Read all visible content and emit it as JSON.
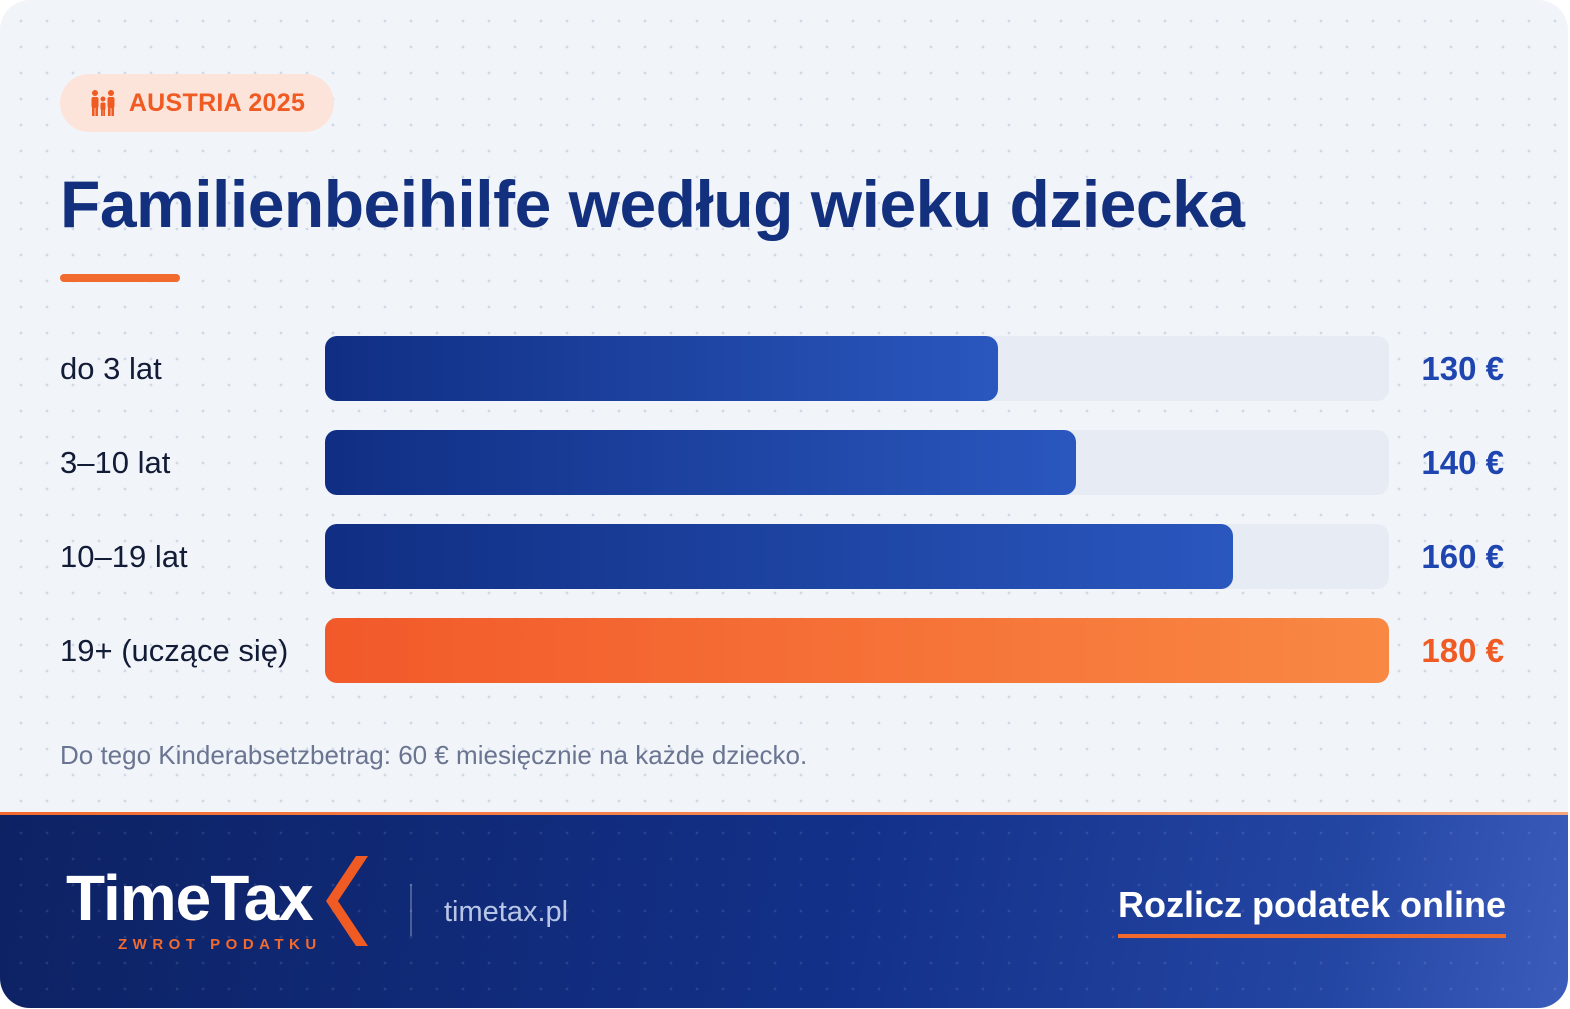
{
  "badge": {
    "label": "AUSTRIA 2025",
    "icon": "family-icon"
  },
  "title": "Familienbeihilfe według wieku dziecka",
  "chart_data": {
    "type": "bar",
    "orientation": "horizontal",
    "unit": "€",
    "categories": [
      "do 3 lat",
      "3–10 lat",
      "10–19 lat",
      "19+ (uczące się)"
    ],
    "values": [
      130,
      140,
      160,
      180
    ],
    "value_labels": [
      "130 €",
      "140 €",
      "160 €",
      "180 €"
    ],
    "xlim": [
      0,
      180
    ],
    "highlight_index": 3,
    "colors": {
      "bar": "#1a3c9e",
      "highlight": "#f2592a",
      "track": "#e6ebf4",
      "value": "#1f46b0",
      "highlight_value": "#f05a23"
    }
  },
  "note": "Do tego Kinderabsetzbetrag: 60 € miesięcznie na każde dziecko.",
  "footer": {
    "logo_text": "TimeTax",
    "logo_tagline": "ZWROT PODATKU",
    "website": "timetax.pl",
    "cta_label": "Rozlicz podatek online"
  }
}
